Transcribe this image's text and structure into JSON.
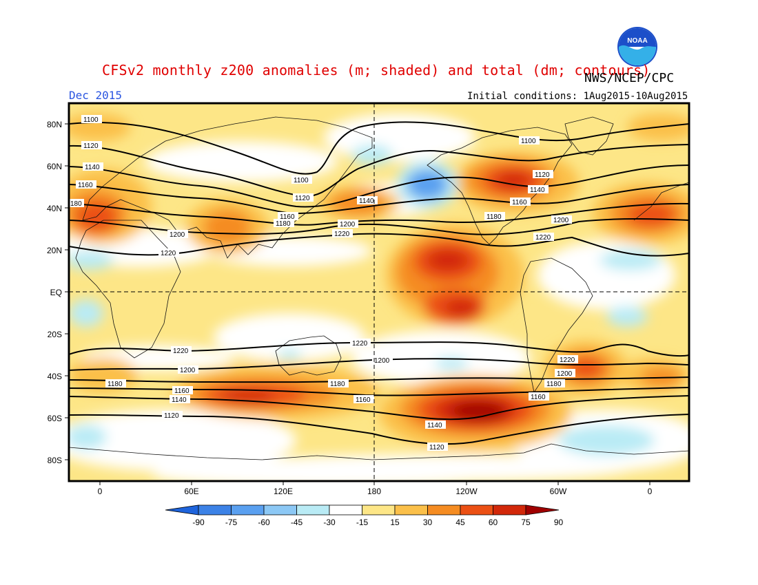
{
  "header": {
    "title": "CFSv2 monthly z200 anomalies (m; shaded) and total (dm; contours)",
    "agency": "NWS/NCEP/CPC",
    "valid_month": "Dec 2015",
    "initial_conditions": "Initial conditions: 1Aug2015-10Aug2015",
    "logo_text": "NOAA"
  },
  "axes": {
    "lat_labels": [
      "80N",
      "60N",
      "40N",
      "20N",
      "EQ",
      "20S",
      "40S",
      "60S",
      "80S"
    ],
    "lon_labels": [
      "0",
      "60E",
      "120E",
      "180",
      "120W",
      "60W",
      "0"
    ]
  },
  "colorbar": {
    "labels": [
      "-90",
      "-75",
      "-60",
      "-45",
      "-30",
      "-15",
      "15",
      "30",
      "45",
      "60",
      "75",
      "90"
    ],
    "colors": [
      "#1e64dc",
      "#3c82e6",
      "#5aa0f0",
      "#8cc8f5",
      "#b9ebf5",
      "#ffffff",
      "#fde687",
      "#fbc04a",
      "#f58c22",
      "#eb5014",
      "#d2280a",
      "#a00000"
    ]
  },
  "contour_labels": [
    "1100",
    "1120",
    "1140",
    "1160",
    "180",
    "1200",
    "1220",
    "1100",
    "1120",
    "1160",
    "1180",
    "1140",
    "1200",
    "1220",
    "1100",
    "1120",
    "1140",
    "1160",
    "1180",
    "1200",
    "1220",
    "1220",
    "1200",
    "1180",
    "1160",
    "1140",
    "1120",
    "1180",
    "1220",
    "1200",
    "1160",
    "1140",
    "1120",
    "1220",
    "1200",
    "1180",
    "1160"
  ]
}
